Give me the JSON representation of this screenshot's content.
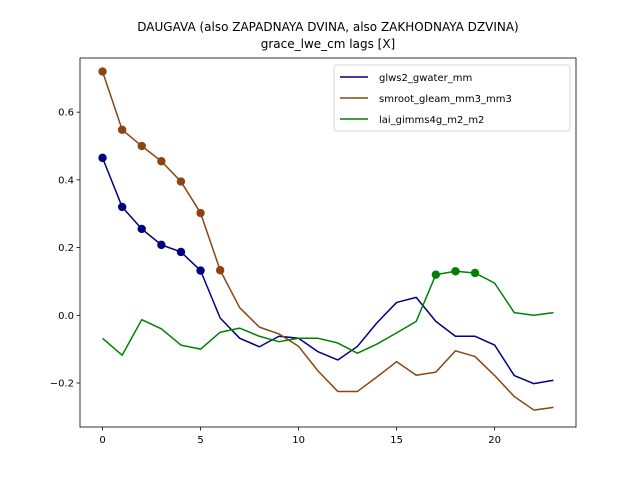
{
  "chart_data": {
    "type": "line",
    "title": "DAUGAVA (also ZAPADNAYA DVINA, also ZAKHODNAYA DZVINA)",
    "subtitle": "grace_lwe_cm lags [X]",
    "xlabel": "",
    "ylabel": "",
    "xlim": [
      -1.15,
      24.15
    ],
    "ylim": [
      -0.33,
      0.76
    ],
    "xticks": [
      0,
      5,
      10,
      15,
      20
    ],
    "yticks": [
      -0.2,
      0.0,
      0.2,
      0.4,
      0.6
    ],
    "ytick_labels": [
      "−0.2",
      "0.0",
      "0.2",
      "0.4",
      "0.6"
    ],
    "grid": false,
    "legend_position": "top-right",
    "x": [
      0,
      1,
      2,
      3,
      4,
      5,
      6,
      7,
      8,
      9,
      10,
      11,
      12,
      13,
      14,
      15,
      16,
      17,
      18,
      19,
      20,
      21,
      22,
      23
    ],
    "series": [
      {
        "name": "glws2_gwater_mm",
        "color": "#000080",
        "values": [
          0.465,
          0.32,
          0.255,
          0.208,
          0.187,
          0.132,
          -0.008,
          -0.068,
          -0.093,
          -0.062,
          -0.068,
          -0.108,
          -0.132,
          -0.092,
          -0.022,
          0.038,
          0.053,
          -0.018,
          -0.062,
          -0.062,
          -0.088,
          -0.178,
          -0.202,
          -0.192
        ],
        "markers": [
          0,
          1,
          2,
          3,
          4,
          5
        ]
      },
      {
        "name": "smroot_gleam_mm3_mm3",
        "color": "#8B4513",
        "values": [
          0.72,
          0.548,
          0.5,
          0.455,
          0.395,
          0.302,
          0.133,
          0.022,
          -0.035,
          -0.055,
          -0.092,
          -0.165,
          -0.225,
          -0.225,
          -0.182,
          -0.137,
          -0.177,
          -0.168,
          -0.105,
          -0.122,
          -0.178,
          -0.24,
          -0.28,
          -0.272
        ],
        "markers": [
          0,
          1,
          2,
          3,
          4,
          5,
          6
        ]
      },
      {
        "name": "lai_gimms4g_m2_m2",
        "color": "#008000",
        "values": [
          -0.068,
          -0.118,
          -0.013,
          -0.04,
          -0.088,
          -0.1,
          -0.05,
          -0.038,
          -0.062,
          -0.078,
          -0.068,
          -0.068,
          -0.082,
          -0.112,
          -0.085,
          -0.052,
          -0.018,
          0.12,
          0.13,
          0.125,
          0.095,
          0.008,
          0.0,
          0.008
        ],
        "markers": [
          17,
          18,
          19
        ]
      }
    ]
  }
}
